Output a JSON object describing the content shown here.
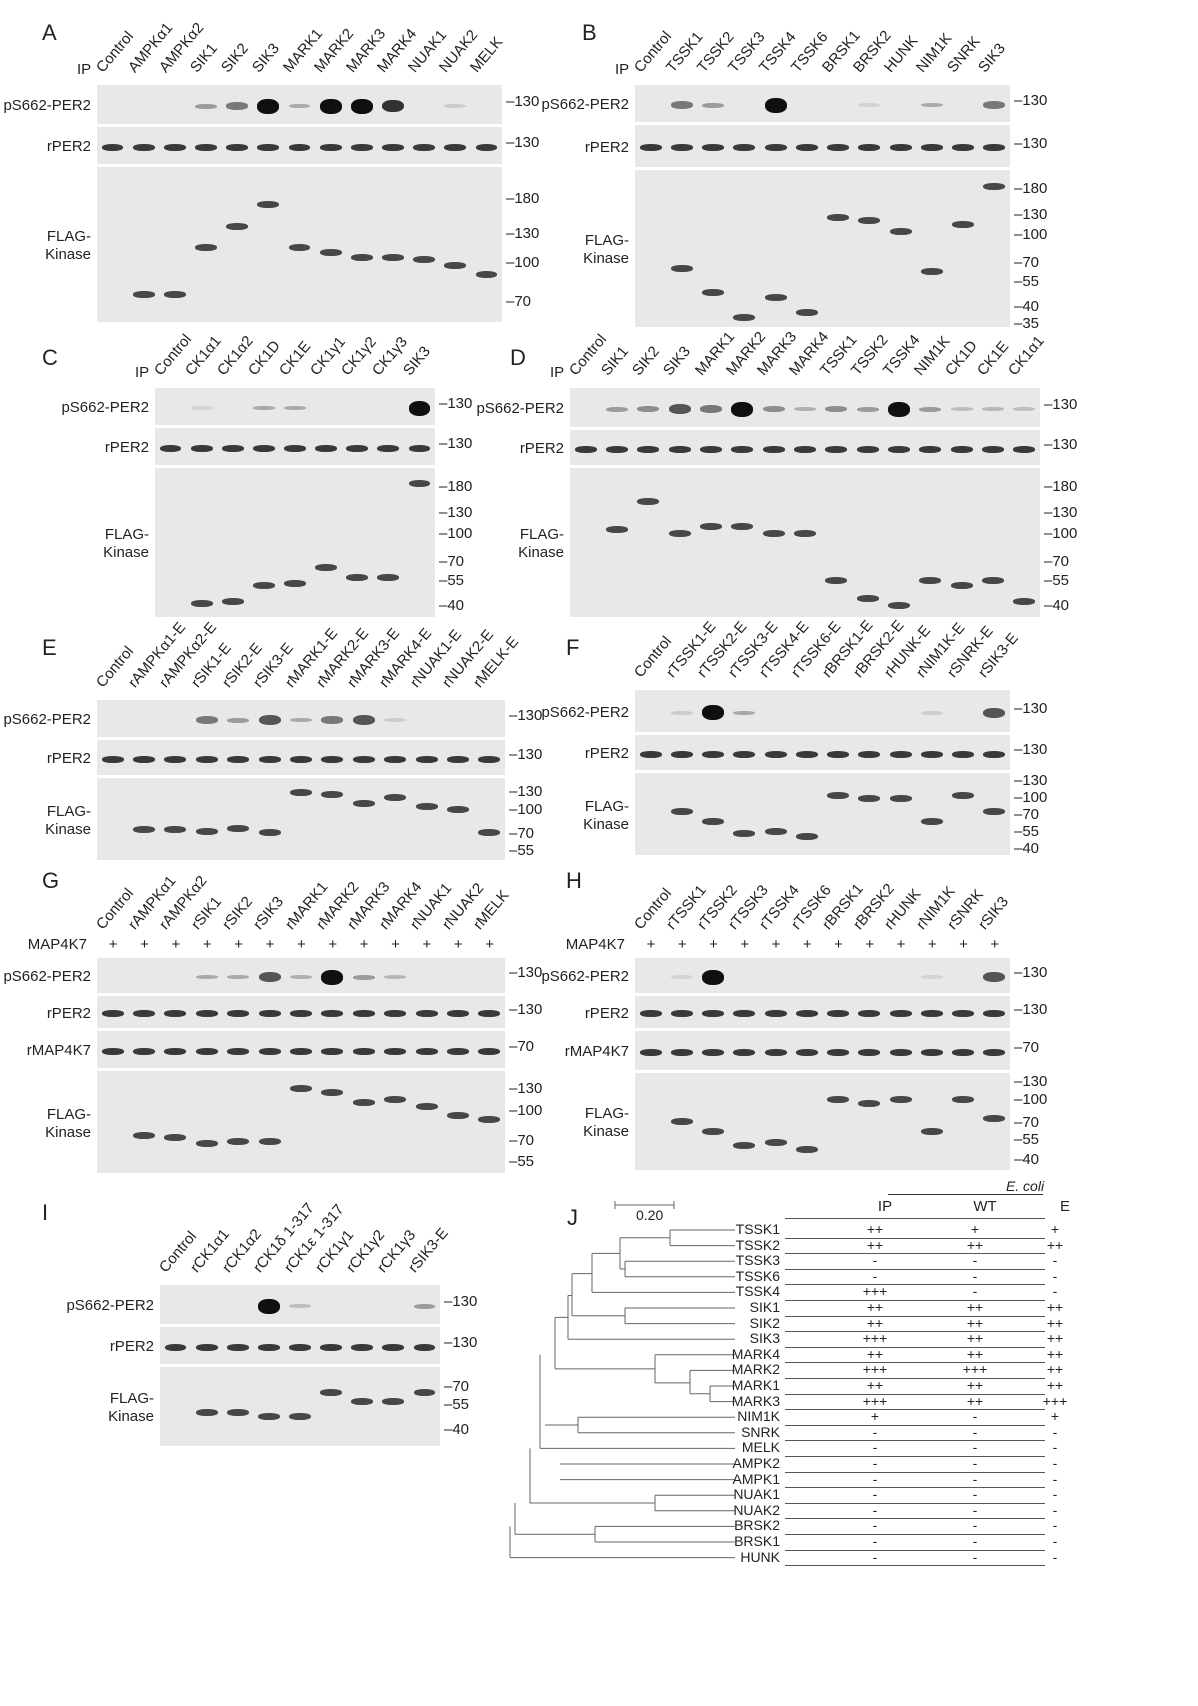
{
  "panels": {
    "A": {
      "letter": "A",
      "ip_label": "IP",
      "lanes": [
        "Control",
        "AMPKα1",
        "AMPKα2",
        "SIK1",
        "SIK2",
        "SIK3",
        "MARK1",
        "MARK2",
        "MARK3",
        "MARK4",
        "NUAK1",
        "NUAK2",
        "MELK"
      ],
      "rows": [
        {
          "label": "pS662-PER2",
          "type": "signal",
          "markers": [
            "130"
          ],
          "signal": [
            0,
            0,
            0,
            1,
            1.5,
            3,
            0.8,
            3,
            3,
            2.5,
            0,
            0.3,
            0
          ]
        },
        {
          "label": "rPER2",
          "type": "loading",
          "markers": [
            "130"
          ]
        },
        {
          "label": "FLAG-\nKinase",
          "type": "flag",
          "markers": [
            "180",
            "130",
            "100",
            "70"
          ],
          "kda_range": [
            240,
            60
          ],
          "flag_kda": [
            null,
            75,
            75,
            115,
            140,
            170,
            115,
            110,
            105,
            105,
            103,
            98,
            90
          ]
        }
      ]
    },
    "B": {
      "letter": "B",
      "ip_label": "IP",
      "lanes": [
        "Control",
        "TSSK1",
        "TSSK2",
        "TSSK3",
        "TSSK4",
        "TSSK6",
        "BRSK1",
        "BRSK2",
        "HUNK",
        "NIM1K",
        "SNRK",
        "SIK3"
      ],
      "rows": [
        {
          "label": "pS662-PER2",
          "type": "signal",
          "markers": [
            "130"
          ],
          "signal": [
            0,
            1.5,
            1,
            0,
            3,
            0,
            0,
            0.2,
            0,
            0.8,
            0,
            1.5
          ]
        },
        {
          "label": "rPER2",
          "type": "loading",
          "markers": [
            "130"
          ]
        },
        {
          "label": "FLAG-\nKinase",
          "type": "flag",
          "markers": [
            "180",
            "130",
            "100",
            "70",
            "55",
            "40",
            "35"
          ],
          "kda_range": [
            230,
            32
          ],
          "flag_kda": [
            null,
            65,
            48,
            35,
            45,
            37,
            125,
            120,
            105,
            63,
            115,
            185
          ]
        }
      ]
    },
    "C": {
      "letter": "C",
      "ip_label": "IP",
      "lanes": [
        "Control",
        "CK1α1",
        "CK1α2",
        "CK1D",
        "CK1E",
        "CK1γ1",
        "CK1γ2",
        "CK1γ3",
        "SIK3"
      ],
      "rows": [
        {
          "label": "pS662-PER2",
          "type": "signal",
          "markers": [
            "130"
          ],
          "signal": [
            0,
            0.2,
            0,
            0.8,
            0.8,
            0,
            0,
            0,
            3
          ]
        },
        {
          "label": "rPER2",
          "type": "loading",
          "markers": [
            "130"
          ]
        },
        {
          "label": "FLAG-\nKinase",
          "type": "flag",
          "markers": [
            "180",
            "130",
            "100",
            "70",
            "55",
            "40"
          ],
          "kda_range": [
            230,
            36
          ],
          "flag_kda": [
            null,
            41,
            42,
            52,
            53,
            65,
            57,
            57,
            190
          ]
        }
      ]
    },
    "D": {
      "letter": "D",
      "ip_label": "IP",
      "lanes": [
        "Control",
        "SIK1",
        "SIK2",
        "SIK3",
        "MARK1",
        "MARK2",
        "MARK3",
        "MARK4",
        "TSSK1",
        "TSSK2",
        "TSSK4",
        "NIM1K",
        "CK1D",
        "CK1E",
        "CK1α1"
      ],
      "rows": [
        {
          "label": "pS662-PER2",
          "type": "signal",
          "markers": [
            "130"
          ],
          "signal": [
            0,
            1,
            1.2,
            2,
            1.5,
            3,
            1.2,
            0.7,
            1.2,
            1,
            3,
            1,
            0.5,
            0.6,
            0.5
          ]
        },
        {
          "label": "rPER2",
          "type": "loading",
          "markers": [
            "130"
          ]
        },
        {
          "label": "FLAG-\nKinase",
          "type": "flag",
          "markers": [
            "180",
            "130",
            "100",
            "70",
            "55",
            "40"
          ],
          "kda_range": [
            230,
            36
          ],
          "flag_kda": [
            null,
            105,
            150,
            100,
            110,
            110,
            100,
            100,
            55,
            44,
            40,
            55,
            52,
            55,
            42
          ]
        }
      ]
    },
    "E": {
      "letter": "E",
      "ip_label": "",
      "lanes": [
        "Control",
        "rAMPKα1-E",
        "rAMPKα2-E",
        "rSIK1-E",
        "rSIK2-E",
        "rSIK3-E",
        "rMARK1-E",
        "rMARK2-E",
        "rMARK3-E",
        "rMARK4-E",
        "rNUAK1-E",
        "rNUAK2-E",
        "rMELK-E"
      ],
      "rows": [
        {
          "label": "pS662-PER2",
          "type": "signal",
          "markers": [
            "130"
          ],
          "signal": [
            0,
            0,
            0,
            1.5,
            1,
            2,
            0.8,
            1.5,
            2,
            0.3,
            0,
            0,
            0
          ]
        },
        {
          "label": "rPER2",
          "type": "loading",
          "markers": [
            "130"
          ]
        },
        {
          "label": "FLAG-\nKinase",
          "type": "flag",
          "markers": [
            "130",
            "100",
            "70",
            "55"
          ],
          "kda_range": [
            160,
            50
          ],
          "flag_kda": [
            null,
            75,
            75,
            73,
            76,
            72,
            130,
            125,
            110,
            120,
            105,
            100,
            72
          ]
        }
      ]
    },
    "F": {
      "letter": "F",
      "ip_label": "",
      "lanes": [
        "Control",
        "rTSSK1-E",
        "rTSSK2-E",
        "rTSSK3-E",
        "rTSSK4-E",
        "rTSSK6-E",
        "rBRSK1-E",
        "rBRSK2-E",
        "rHUNK-E",
        "rNIM1K-E",
        "rSNRK-E",
        "rSIK3-E"
      ],
      "rows": [
        {
          "label": "pS662-PER2",
          "type": "signal",
          "markers": [
            "130"
          ],
          "signal": [
            0,
            0.3,
            3,
            0.8,
            0,
            0,
            0,
            0,
            0,
            0.3,
            0,
            2
          ]
        },
        {
          "label": "rPER2",
          "type": "loading",
          "markers": [
            "130"
          ]
        },
        {
          "label": "FLAG-\nKinase",
          "type": "flag",
          "markers": [
            "130",
            "100",
            "70",
            "55",
            "40"
          ],
          "kda_range": [
            150,
            36
          ],
          "flag_kda": [
            null,
            75,
            62,
            50,
            52,
            48,
            100,
            95,
            95,
            62,
            100,
            75
          ]
        }
      ]
    },
    "G": {
      "letter": "G",
      "ip_label": "",
      "treatment": {
        "label": "MAP4K7",
        "mark": "+"
      },
      "lanes": [
        "Control",
        "rAMPKα1",
        "rAMPKα2",
        "rSIK1",
        "rSIK2",
        "rSIK3",
        "rMARK1",
        "rMARK2",
        "rMARK3",
        "rMARK4",
        "rNUAK1",
        "rNUAK2",
        "rMELK"
      ],
      "rows": [
        {
          "label": "pS662-PER2",
          "type": "signal",
          "markers": [
            "130"
          ],
          "signal": [
            0,
            0,
            0,
            0.8,
            0.8,
            2,
            0.7,
            3,
            1,
            0.6,
            0,
            0,
            0
          ]
        },
        {
          "label": "rPER2",
          "type": "loading",
          "markers": [
            "130"
          ]
        },
        {
          "label": "rMAP4K7",
          "type": "loading",
          "markers": [
            "70"
          ]
        },
        {
          "label": "FLAG-\nKinase",
          "type": "flag",
          "markers": [
            "130",
            "100",
            "70",
            "55"
          ],
          "kda_range": [
            160,
            50
          ],
          "flag_kda": [
            null,
            75,
            73,
            68,
            70,
            70,
            130,
            125,
            110,
            115,
            105,
            95,
            90
          ]
        }
      ]
    },
    "H": {
      "letter": "H",
      "ip_label": "",
      "treatment": {
        "label": "MAP4K7",
        "mark": "+"
      },
      "lanes": [
        "Control",
        "rTSSK1",
        "rTSSK2",
        "rTSSK3",
        "rTSSK4",
        "rTSSK6",
        "rBRSK1",
        "rBRSK2",
        "rHUNK",
        "rNIM1K",
        "rSNRK",
        "rSIK3"
      ],
      "rows": [
        {
          "label": "pS662-PER2",
          "type": "signal",
          "markers": [
            "130"
          ],
          "signal": [
            0,
            0.2,
            3,
            0,
            0,
            0,
            0,
            0,
            0,
            0.2,
            0,
            2
          ]
        },
        {
          "label": "rPER2",
          "type": "loading",
          "markers": [
            "130"
          ]
        },
        {
          "label": "rMAP4K7",
          "type": "loading",
          "markers": [
            "70"
          ]
        },
        {
          "label": "FLAG-\nKinase",
          "type": "flag",
          "markers": [
            "130",
            "100",
            "70",
            "55",
            "40"
          ],
          "kda_range": [
            150,
            36
          ],
          "flag_kda": [
            null,
            72,
            62,
            50,
            52,
            47,
            100,
            95,
            100,
            62,
            100,
            75
          ]
        }
      ]
    },
    "I": {
      "letter": "I",
      "ip_label": "",
      "lanes": [
        "Control",
        "rCK1α1",
        "rCK1α2",
        "rCK1δ 1-317",
        "rCK1ε 1-317",
        "rCK1γ1",
        "rCK1γ2",
        "rCK1γ3",
        "rSIK3-E"
      ],
      "rows": [
        {
          "label": "pS662-PER2",
          "type": "signal",
          "markers": [
            "130"
          ],
          "signal": [
            0,
            0,
            0,
            3,
            0.5,
            0,
            0,
            0,
            1
          ]
        },
        {
          "label": "rPER2",
          "type": "loading",
          "markers": [
            "130"
          ]
        },
        {
          "label": "FLAG-\nKinase",
          "type": "flag",
          "markers": [
            "70",
            "55",
            "40"
          ],
          "kda_range": [
            90,
            34
          ],
          "flag_kda": [
            null,
            50,
            50,
            48,
            48,
            65,
            58,
            58,
            65
          ]
        }
      ]
    }
  },
  "J": {
    "letter": "J",
    "scale_label": "0.20",
    "group_label": "E. coli",
    "columns": [
      "IP",
      "WT",
      "E"
    ],
    "rows": [
      {
        "name": "TSSK1",
        "vals": [
          "++",
          "+",
          "+"
        ]
      },
      {
        "name": "TSSK2",
        "vals": [
          "++",
          "++",
          "++"
        ]
      },
      {
        "name": "TSSK3",
        "vals": [
          "-",
          "-",
          "-"
        ]
      },
      {
        "name": "TSSK6",
        "vals": [
          "-",
          "-",
          "-"
        ]
      },
      {
        "name": "TSSK4",
        "vals": [
          "+++",
          "-",
          "-"
        ]
      },
      {
        "name": "SIK1",
        "vals": [
          "++",
          "++",
          "++"
        ]
      },
      {
        "name": "SIK2",
        "vals": [
          "++",
          "++",
          "++"
        ]
      },
      {
        "name": "SIK3",
        "vals": [
          "+++",
          "++",
          "++"
        ]
      },
      {
        "name": "MARK4",
        "vals": [
          "++",
          "++",
          "++"
        ]
      },
      {
        "name": "MARK2",
        "vals": [
          "+++",
          "+++",
          "++"
        ]
      },
      {
        "name": "MARK1",
        "vals": [
          "++",
          "++",
          "++"
        ]
      },
      {
        "name": "MARK3",
        "vals": [
          "+++",
          "++",
          "+++"
        ]
      },
      {
        "name": "NIM1K",
        "vals": [
          "+",
          "-",
          "+"
        ]
      },
      {
        "name": "SNRK",
        "vals": [
          "-",
          "-",
          "-"
        ]
      },
      {
        "name": "MELK",
        "vals": [
          "-",
          "-",
          "-"
        ]
      },
      {
        "name": "AMPK2",
        "vals": [
          "-",
          "-",
          "-"
        ]
      },
      {
        "name": "AMPK1",
        "vals": [
          "-",
          "-",
          "-"
        ]
      },
      {
        "name": "NUAK1",
        "vals": [
          "-",
          "-",
          "-"
        ]
      },
      {
        "name": "NUAK2",
        "vals": [
          "-",
          "-",
          "-"
        ]
      },
      {
        "name": "BRSK2",
        "vals": [
          "-",
          "-",
          "-"
        ]
      },
      {
        "name": "BRSK1",
        "vals": [
          "-",
          "-",
          "-"
        ]
      },
      {
        "name": "HUNK",
        "vals": [
          "-",
          "-",
          "-"
        ]
      }
    ]
  }
}
